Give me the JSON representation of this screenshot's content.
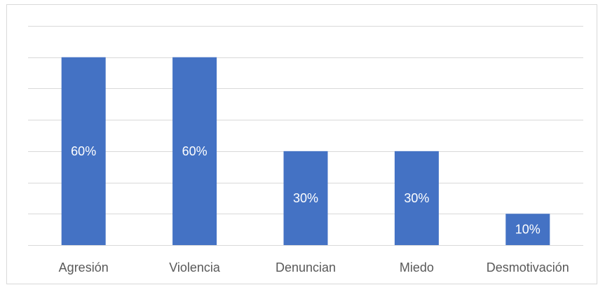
{
  "chart_data": {
    "type": "bar",
    "categories": [
      "Agresión",
      "Violencia",
      "Denuncian",
      "Miedo",
      "Desmotivación"
    ],
    "values": [
      60,
      60,
      30,
      30,
      10
    ],
    "value_labels": [
      "60%",
      "60%",
      "30%",
      "30%",
      "10%"
    ],
    "ylim": [
      0,
      70
    ],
    "grid": true,
    "legend": "none",
    "colors": {
      "bar": "#4472c4",
      "grid": "#d9d9d9",
      "axis": "#d9d9d9",
      "label_text": "#595959",
      "value_text": "#ffffff"
    }
  }
}
